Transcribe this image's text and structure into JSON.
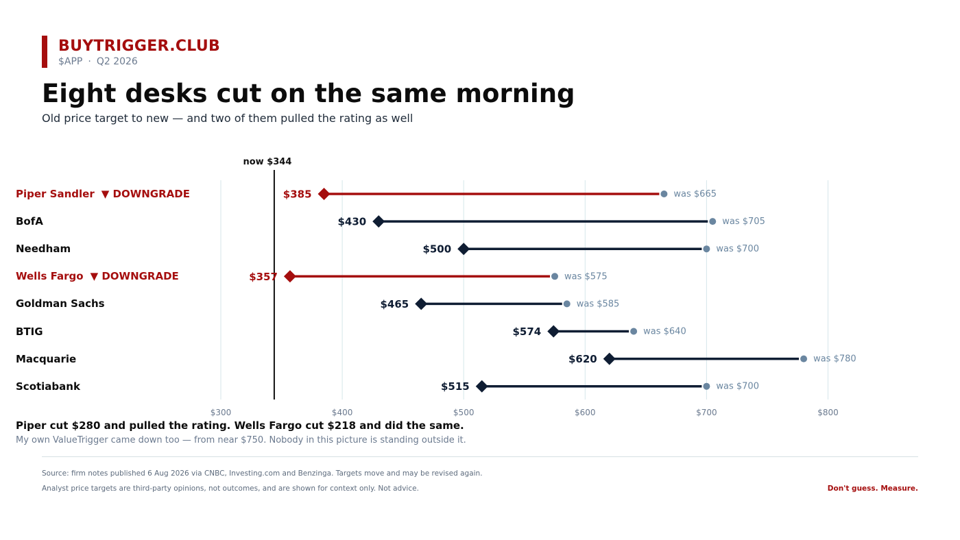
{
  "brand": {
    "name": "BUYTRIGGER.CLUB",
    "ticker": "$APP",
    "separator": "·",
    "period": "Q2 2026"
  },
  "headline": "Eight desks cut on the same morning",
  "subhead": "Old price target to new — and two of them pulled the rating as well",
  "colors": {
    "accent": "#a50e0e",
    "navy": "#0f1d33",
    "old_dot": "#6a86a0",
    "grid": "#d6e6ea",
    "muted": "#6b7a8f"
  },
  "chart_data": {
    "type": "dumbbell",
    "title": "",
    "xlabel": "",
    "ylabel": "",
    "xlim": [
      255,
      855
    ],
    "x_ticks": [
      300,
      400,
      500,
      600,
      700,
      800
    ],
    "x_tick_labels": [
      "$300",
      "$400",
      "$500",
      "$600",
      "$700",
      "$800"
    ],
    "grid": true,
    "reference_line": {
      "value": 344,
      "label": "now $344"
    },
    "rows": [
      {
        "firm": "Piper Sandler",
        "badge": "▼ DOWNGRADE",
        "downgrade": true,
        "old": 665,
        "new": 385,
        "old_label": "was $665",
        "new_label": "$385"
      },
      {
        "firm": "BofA",
        "badge": "",
        "downgrade": false,
        "old": 705,
        "new": 430,
        "old_label": "was $705",
        "new_label": "$430"
      },
      {
        "firm": "Needham",
        "badge": "",
        "downgrade": false,
        "old": 700,
        "new": 500,
        "old_label": "was $700",
        "new_label": "$500"
      },
      {
        "firm": "Wells Fargo",
        "badge": "▼ DOWNGRADE",
        "downgrade": true,
        "old": 575,
        "new": 357,
        "old_label": "was $575",
        "new_label": "$357"
      },
      {
        "firm": "Goldman Sachs",
        "badge": "",
        "downgrade": false,
        "old": 585,
        "new": 465,
        "old_label": "was $585",
        "new_label": "$465"
      },
      {
        "firm": "BTIG",
        "badge": "",
        "downgrade": false,
        "old": 640,
        "new": 574,
        "old_label": "was $640",
        "new_label": "$574"
      },
      {
        "firm": "Macquarie",
        "badge": "",
        "downgrade": false,
        "old": 780,
        "new": 620,
        "old_label": "was $780",
        "new_label": "$620"
      },
      {
        "firm": "Scotiabank",
        "badge": "",
        "downgrade": false,
        "old": 700,
        "new": 515,
        "old_label": "was $700",
        "new_label": "$515"
      }
    ]
  },
  "takeaway": "Piper cut $280 and pulled the rating. Wells Fargo cut $218 and did the same.",
  "takeaway_note": "My own ValueTrigger came down too — from near $750. Nobody in this picture is standing outside it.",
  "footer": {
    "source": "Source: firm notes published 6 Aug 2026 via CNBC, Investing.com and Benzinga. Targets move and may be revised again.",
    "disclaimer": "Analyst price targets are third-party opinions, not outcomes, and are shown for context only. Not advice.",
    "tagline": "Don't guess. Measure."
  }
}
